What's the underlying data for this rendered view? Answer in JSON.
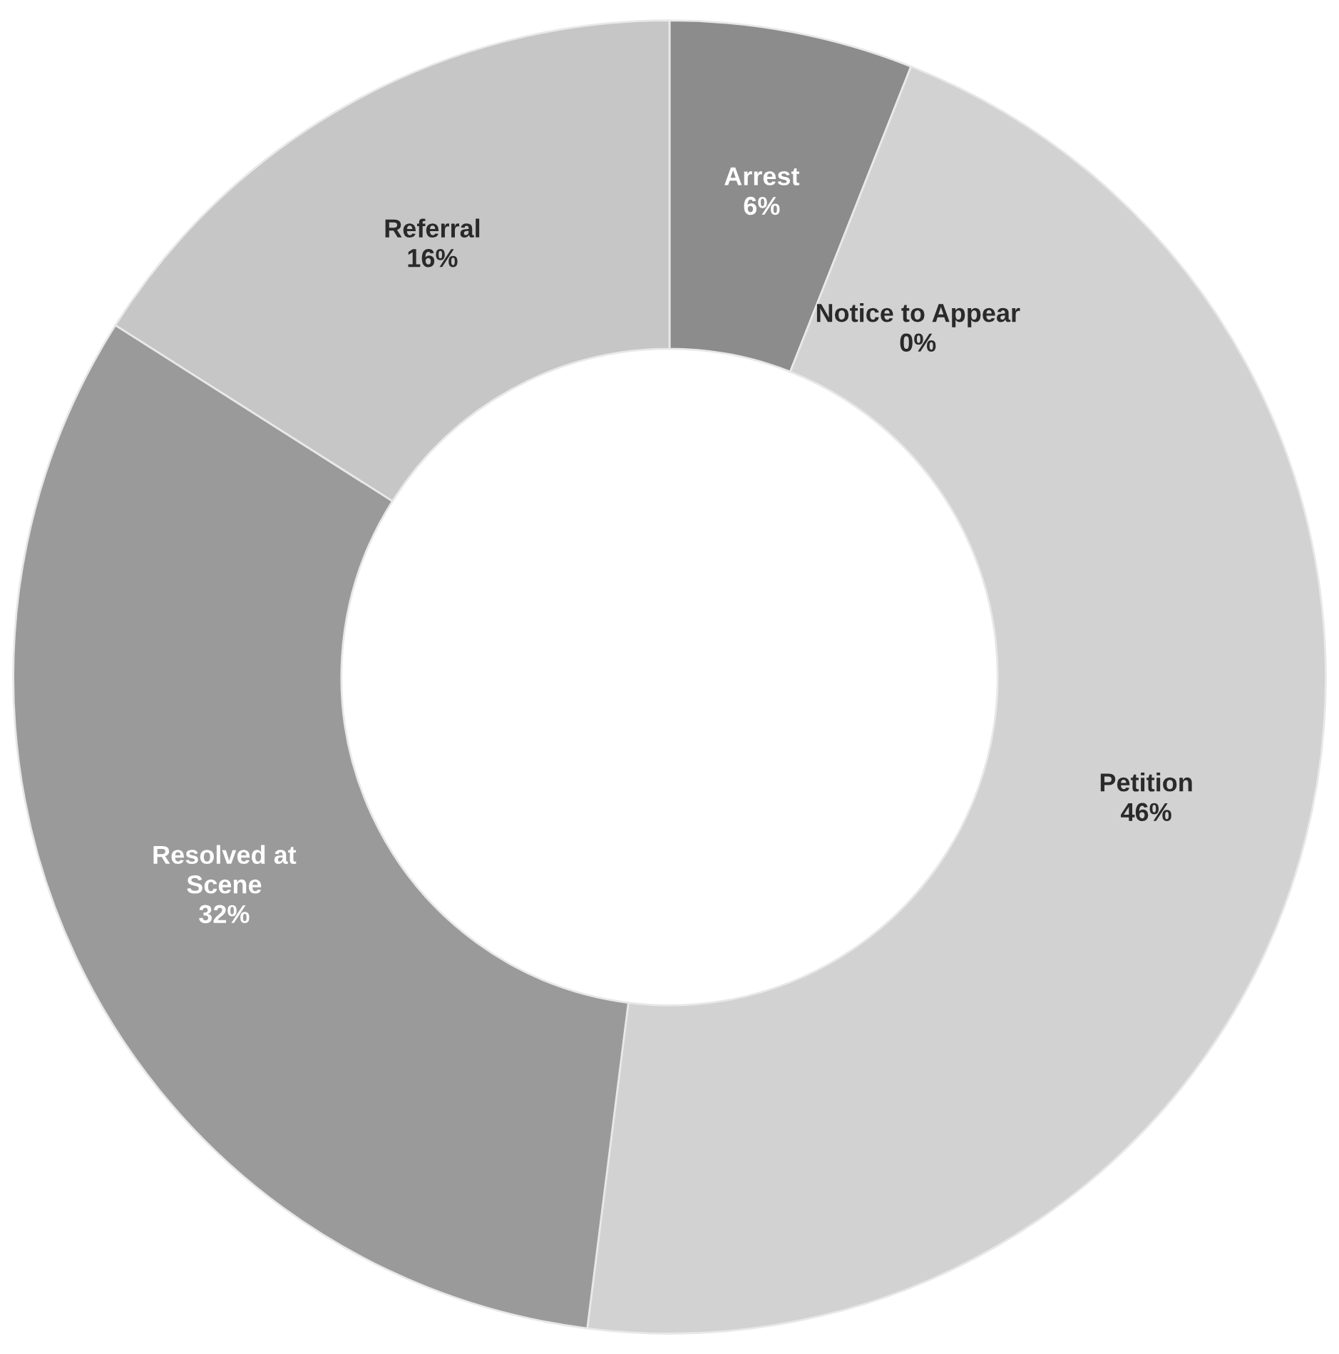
{
  "chart_data": {
    "type": "donut",
    "categories": [
      "Arrest",
      "Notice to Appear",
      "Petition",
      "Resolved at Scene",
      "Referral"
    ],
    "values": [
      6,
      0,
      46,
      32,
      16
    ],
    "value_labels": [
      "6%",
      "0%",
      "46%",
      "32%",
      "16%"
    ],
    "colors": [
      "#8c8c8c",
      "#a8a8a8",
      "#d2d2d2",
      "#9a9a9a",
      "#c6c6c6"
    ],
    "legend": false
  }
}
